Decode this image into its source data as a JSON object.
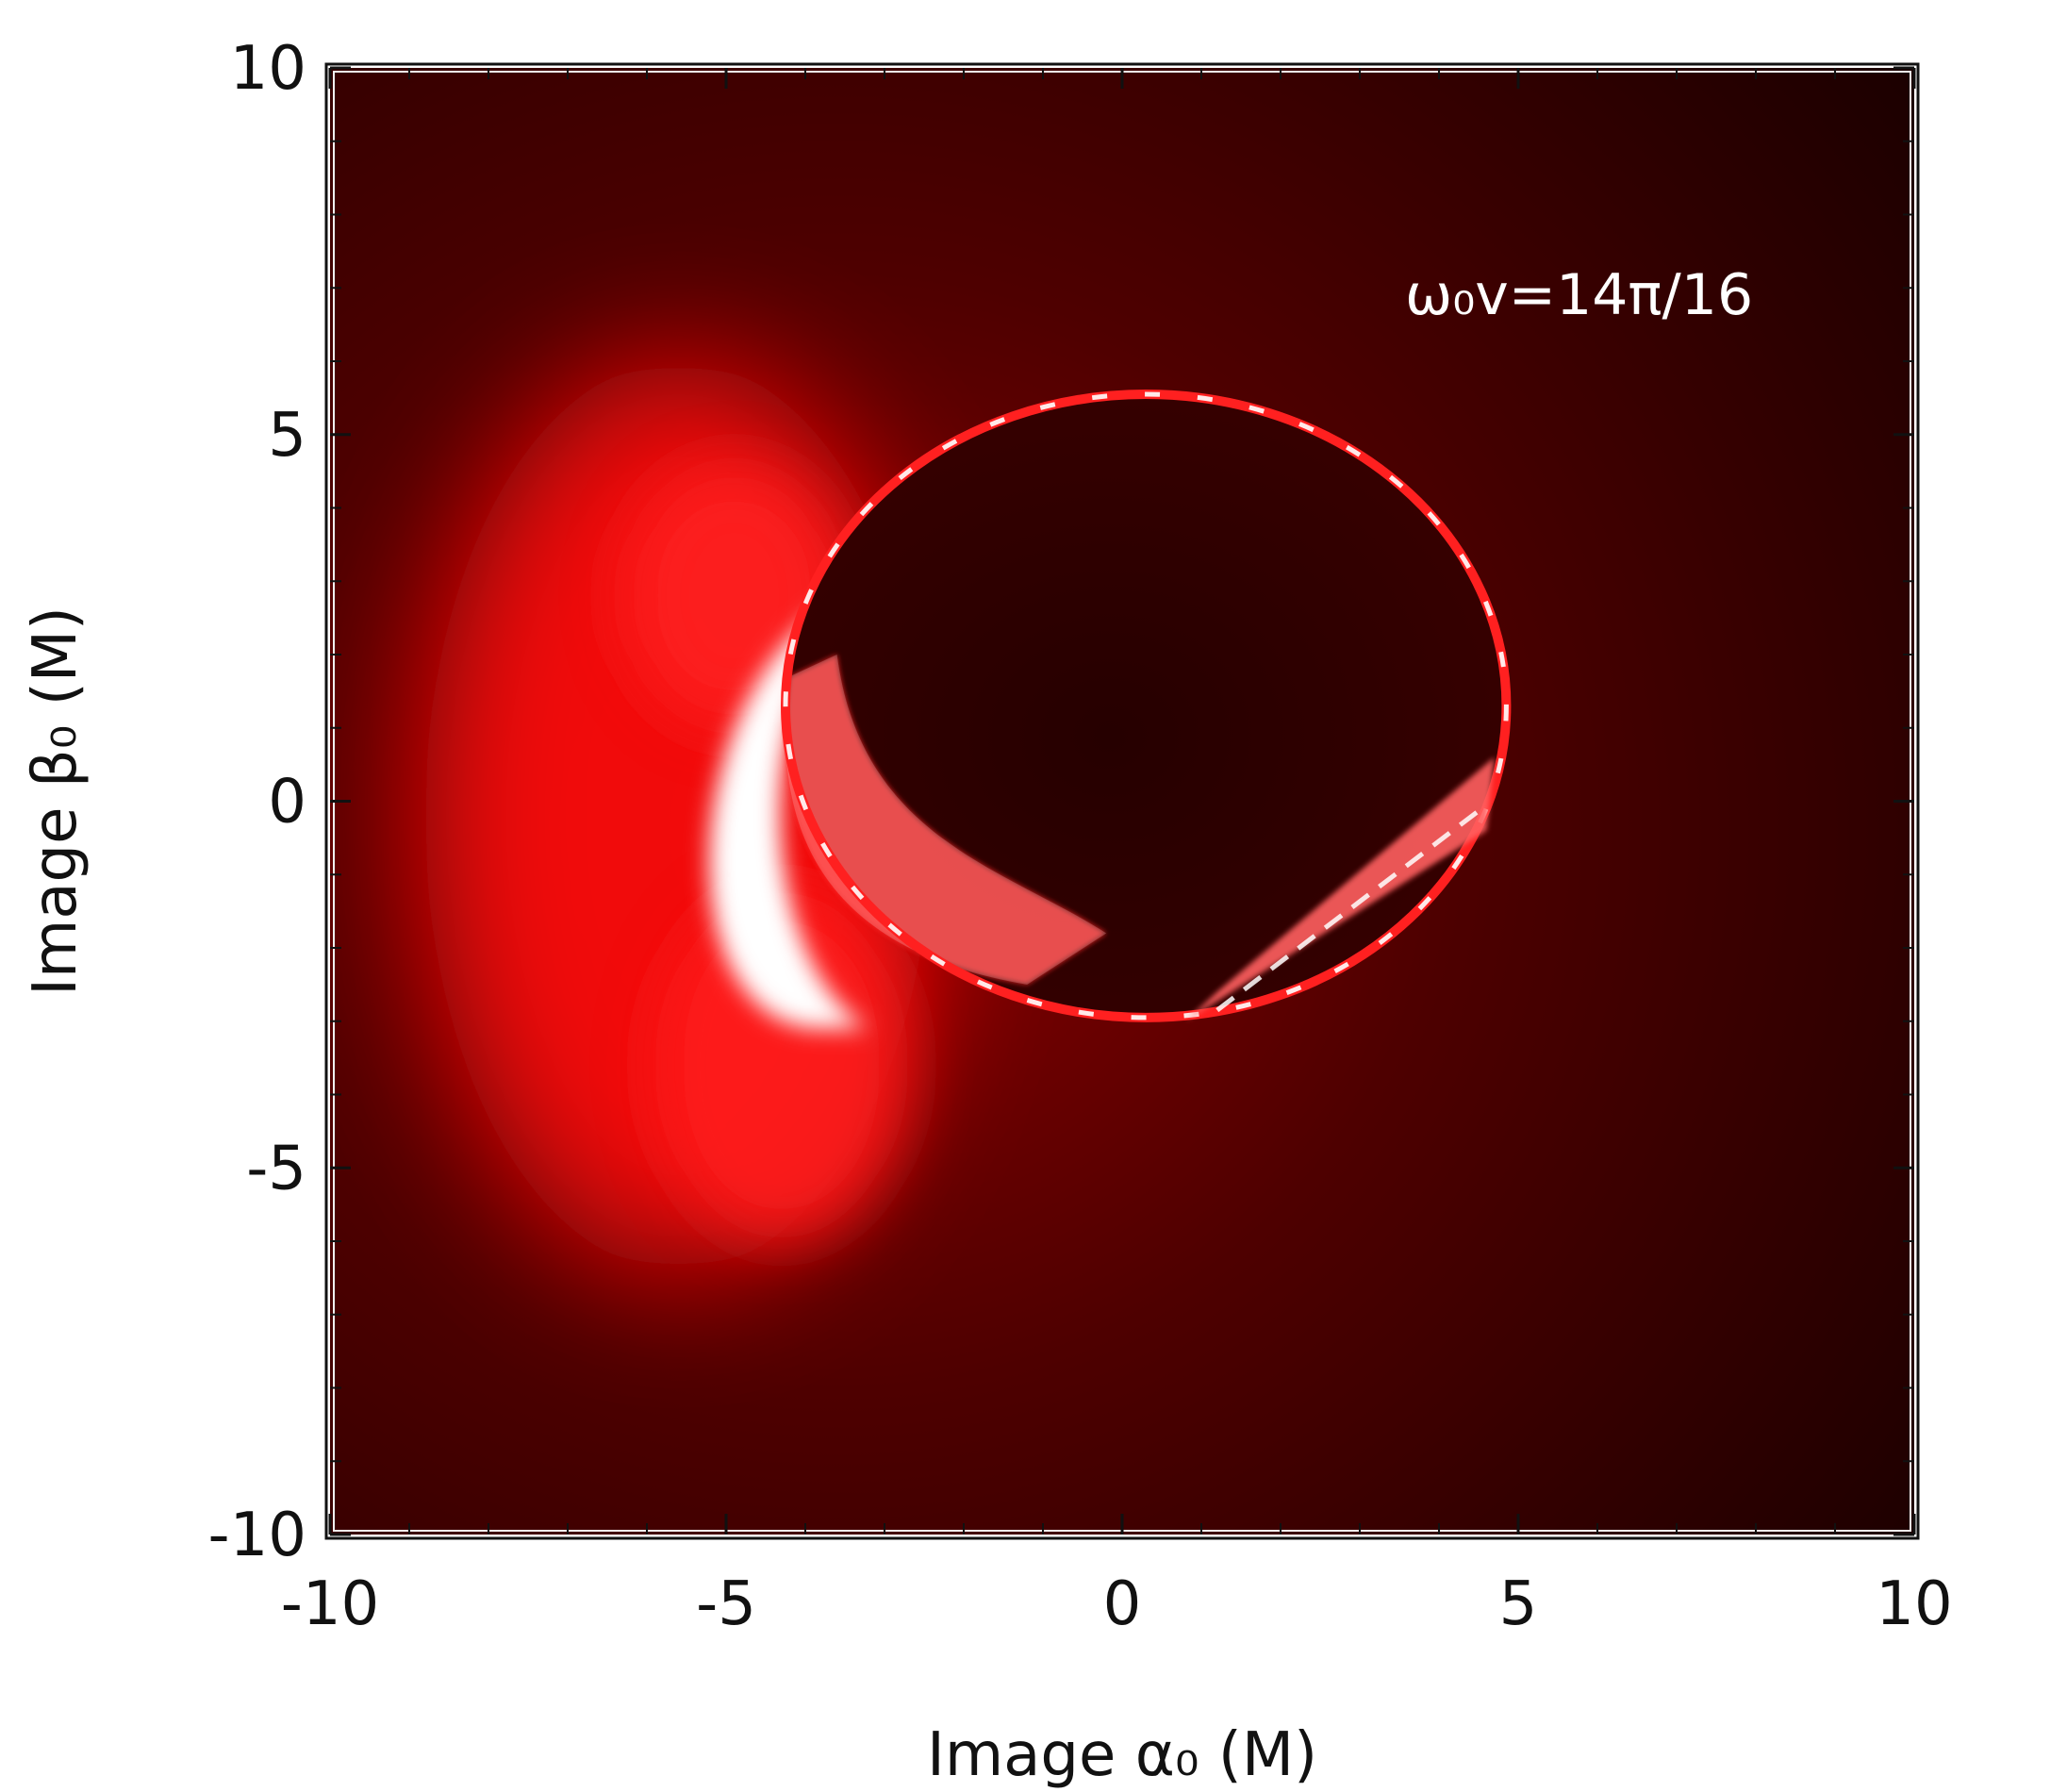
{
  "chart_data": {
    "type": "heatmap",
    "title": "",
    "annotation": "ω₀v=14π/16",
    "xlabel": "Image α₀ (M)",
    "ylabel": "Image β₀ (M)",
    "xlim": [
      -10,
      10
    ],
    "ylim": [
      -10,
      10
    ],
    "x_ticks": [
      -10,
      -5,
      0,
      5,
      10
    ],
    "y_ticks": [
      -10,
      -5,
      0,
      5,
      10
    ],
    "x_tick_labels": [
      "-10",
      "-5",
      "0",
      "5",
      "10"
    ],
    "y_tick_labels": [
      "-10",
      "-5",
      "0",
      "5",
      "10"
    ],
    "colormap": [
      "#1a0000",
      "#4a0000",
      "#b00000",
      "#ff1a1a",
      "#ffffff"
    ],
    "features": {
      "shadow_center": [
        0.3,
        1.3
      ],
      "shadow_radius_x": 4.55,
      "shadow_radius_y": 4.25,
      "bright_crescent_center": [
        -5.0,
        -0.5
      ],
      "bright_crescent_half_height": 2.6
    }
  }
}
